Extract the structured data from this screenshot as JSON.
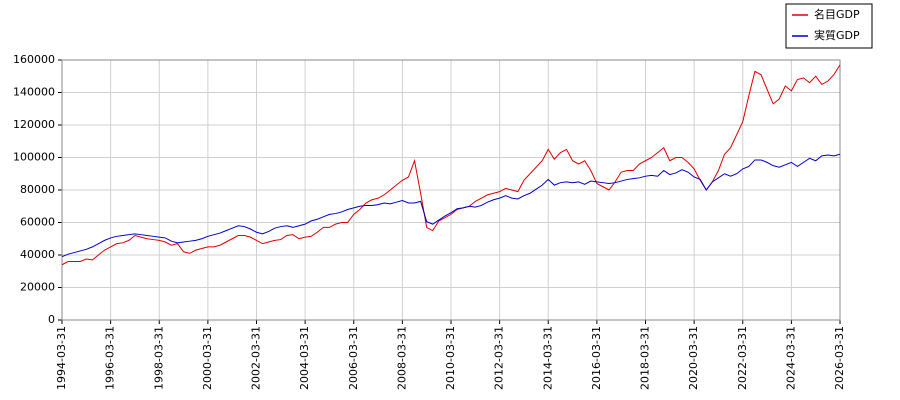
{
  "chart_data": {
    "type": "line",
    "categories": [
      "1994-03-31",
      null,
      null,
      null,
      null,
      null,
      null,
      null,
      "1996-03-31",
      null,
      null,
      null,
      null,
      null,
      null,
      null,
      "1998-03-31",
      null,
      null,
      null,
      null,
      null,
      null,
      null,
      "2000-03-31",
      null,
      null,
      null,
      null,
      null,
      null,
      null,
      "2002-03-31",
      null,
      null,
      null,
      null,
      null,
      null,
      null,
      "2004-03-31",
      null,
      null,
      null,
      null,
      null,
      null,
      null,
      "2006-03-31",
      null,
      null,
      null,
      null,
      null,
      null,
      null,
      "2008-03-31",
      null,
      null,
      null,
      null,
      null,
      null,
      null,
      "2010-03-31",
      null,
      null,
      null,
      null,
      null,
      null,
      null,
      "2012-03-31",
      null,
      null,
      null,
      null,
      null,
      null,
      null,
      "2014-03-31",
      null,
      null,
      null,
      null,
      null,
      null,
      null,
      "2016-03-31",
      null,
      null,
      null,
      null,
      null,
      null,
      null,
      "2018-03-31",
      null,
      null,
      null,
      null,
      null,
      null,
      null,
      "2020-03-31",
      null,
      null,
      null,
      null,
      null,
      null,
      null,
      "2022-03-31",
      null,
      null,
      null,
      null,
      null,
      null,
      null,
      "2024-03-31",
      null,
      null,
      null,
      null,
      null,
      null,
      null,
      "2026-03-31"
    ],
    "series": [
      {
        "name": "名目GDP",
        "color": "#dd0000",
        "values": [
          34000,
          36000,
          36000,
          36000,
          37500,
          37000,
          40000,
          43000,
          45000,
          47000,
          47500,
          49000,
          52000,
          51000,
          50000,
          49500,
          49000,
          48000,
          46000,
          47000,
          42000,
          41000,
          43000,
          44000,
          45000,
          45000,
          46000,
          48000,
          50000,
          52000,
          52000,
          51000,
          49000,
          47000,
          48000,
          49000,
          49500,
          52000,
          52500,
          50000,
          51000,
          51500,
          54000,
          57000,
          57000,
          59000,
          60000,
          60000,
          65000,
          68000,
          72000,
          74000,
          75000,
          77000,
          80000,
          83000,
          86000,
          88000,
          98000,
          78000,
          57000,
          55000,
          61000,
          63000,
          65000,
          68000,
          69000,
          70000,
          73000,
          75000,
          77000,
          78000,
          79000,
          81000,
          80000,
          79000,
          86000,
          90000,
          94000,
          98000,
          105000,
          99000,
          103000,
          105000,
          98000,
          96000,
          98000,
          92000,
          84000,
          82000,
          80000,
          85000,
          91000,
          92000,
          92000,
          96000,
          98000,
          100000,
          103000,
          106000,
          98000,
          100000,
          100000,
          97000,
          93000,
          86000,
          80000,
          85000,
          92000,
          102000,
          106000,
          114000,
          122000,
          138000,
          153000,
          151000,
          142000,
          133000,
          136000,
          144000,
          141000,
          148000,
          149000,
          146000,
          150000,
          145000,
          147000,
          151000,
          157000
        ]
      },
      {
        "name": "実質GDP",
        "color": "#0000cc",
        "values": [
          39000,
          40500,
          41500,
          42500,
          43500,
          45000,
          47000,
          49000,
          50500,
          51500,
          52000,
          52500,
          53000,
          52500,
          52000,
          51500,
          51000,
          50500,
          48500,
          47500,
          48000,
          48500,
          49000,
          50000,
          51500,
          52500,
          53500,
          55000,
          56500,
          58000,
          57500,
          56000,
          54000,
          53000,
          54500,
          56500,
          57500,
          58000,
          57000,
          58000,
          59000,
          61000,
          62000,
          63500,
          65000,
          65500,
          66500,
          68000,
          69000,
          70000,
          70500,
          70500,
          71000,
          72000,
          71500,
          72500,
          73500,
          72000,
          72000,
          73000,
          60500,
          59000,
          61500,
          64000,
          66000,
          68500,
          69000,
          70000,
          69500,
          70500,
          72500,
          74000,
          75000,
          76500,
          75000,
          74500,
          76500,
          78000,
          80500,
          83000,
          86500,
          83000,
          84500,
          85000,
          84500,
          85000,
          83500,
          85500,
          85000,
          84500,
          84000,
          84500,
          85500,
          86500,
          87000,
          87500,
          88500,
          89000,
          88500,
          92000,
          89500,
          90500,
          92500,
          91000,
          88000,
          86500,
          80000,
          85000,
          87500,
          90000,
          88500,
          90000,
          93000,
          94500,
          98500,
          98500,
          97000,
          95000,
          94000,
          95500,
          97000,
          94500,
          97000,
          99500,
          98000,
          101000,
          101500,
          101000,
          102000
        ]
      }
    ],
    "ylim": [
      0,
      160000
    ],
    "yticks": [
      0,
      20000,
      40000,
      60000,
      80000,
      100000,
      120000,
      140000,
      160000
    ],
    "grid": true,
    "legend": "top-right"
  }
}
